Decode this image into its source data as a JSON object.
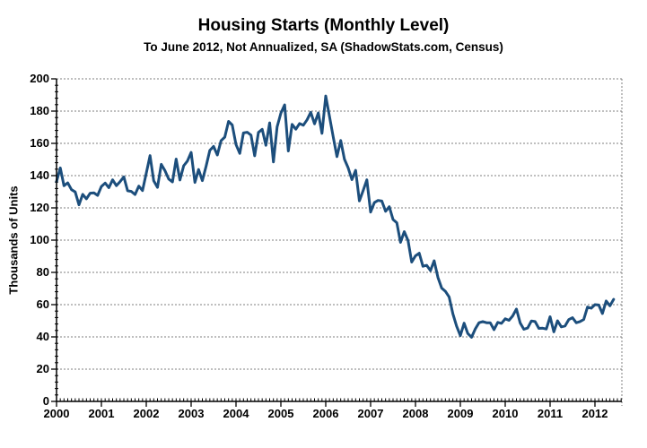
{
  "chart_data": {
    "type": "line",
    "title": "Housing Starts (Monthly Level)",
    "subtitle": "To June 2012, Not Annualized, SA (ShadowStats.com, Census)",
    "ylabel": "Thousands of Units",
    "xlabel": "",
    "ylim": [
      0,
      200
    ],
    "y_ticks": [
      0,
      20,
      40,
      60,
      80,
      100,
      120,
      140,
      160,
      180,
      200
    ],
    "x_tick_labels": [
      "2000",
      "2001",
      "2002",
      "2003",
      "2004",
      "2005",
      "2006",
      "2007",
      "2008",
      "2009",
      "2010",
      "2011",
      "2012"
    ],
    "grid": "horizontal-dotted",
    "legend": "none",
    "line_color": "#1C4E7C",
    "grid_color": "#7f7f7f",
    "axis_color": "#000000",
    "series": [
      {
        "name": "Housing starts, seasonally adjusted monthly level (thousands of units)",
        "frequency": "monthly",
        "start": "2000-01",
        "end": "2012-06",
        "values": [
          136.3,
          144.8,
          133.7,
          135.5,
          131.3,
          129.9,
          121.9,
          128.4,
          125.6,
          129.1,
          129.3,
          127.7,
          133.3,
          135.4,
          132.5,
          137.4,
          133.8,
          136.3,
          139.2,
          130.6,
          130.2,
          128.3,
          133.5,
          130.7,
          141.5,
          152.4,
          136.8,
          132.7,
          147.0,
          143.1,
          137.9,
          136.1,
          150.3,
          137.3,
          146.1,
          149.0,
          154.4,
          135.8,
          143.8,
          136.9,
          145.9,
          155.6,
          158.1,
          152.8,
          161.6,
          163.9,
          173.6,
          171.4,
          159.3,
          153.8,
          166.5,
          166.9,
          165.1,
          152.3,
          166.8,
          168.7,
          158.8,
          172.7,
          148.5,
          170.2,
          178.7,
          183.9,
          155.3,
          171.8,
          168.8,
          172.3,
          171.2,
          174.6,
          179.3,
          172.1,
          178.9,
          166.2,
          189.4,
          176.6,
          164.1,
          151.8,
          161.8,
          150.2,
          144.8,
          137.5,
          143.3,
          124.3,
          130.8,
          137.4,
          117.4,
          123.3,
          124.6,
          124.2,
          117.9,
          120.7,
          112.8,
          110.8,
          98.6,
          105.3,
          99.8,
          86.4,
          90.3,
          91.9,
          83.8,
          84.4,
          81.1,
          87.2,
          76.9,
          70.3,
          68.3,
          64.8,
          54.3,
          46.7,
          40.8,
          48.5,
          42.1,
          39.8,
          45.0,
          48.8,
          49.5,
          48.8,
          48.8,
          44.5,
          49.0,
          48.4,
          51.2,
          50.3,
          53.0,
          57.3,
          48.6,
          44.7,
          45.5,
          49.9,
          49.5,
          45.3,
          45.4,
          44.9,
          52.5,
          43.1,
          50.0,
          46.2,
          46.8,
          50.7,
          51.9,
          48.8,
          49.5,
          50.8,
          58.5,
          57.8,
          60.0,
          59.8,
          54.5,
          62.3,
          59.3,
          63.3
        ]
      }
    ]
  }
}
